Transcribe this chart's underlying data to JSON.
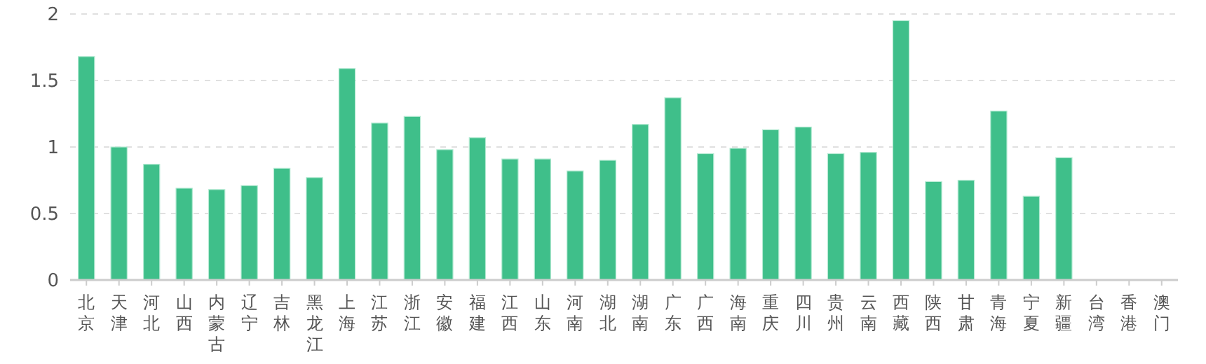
{
  "chart_data": {
    "type": "bar",
    "categories": [
      "北京",
      "天津",
      "河北",
      "山西",
      "内蒙古",
      "辽宁",
      "吉林",
      "黑龙江",
      "上海",
      "江苏",
      "浙江",
      "安徽",
      "福建",
      "江西",
      "山东",
      "河南",
      "湖北",
      "湖南",
      "广东",
      "广西",
      "海南",
      "重庆",
      "四川",
      "贵州",
      "云南",
      "西藏",
      "陕西",
      "甘肃",
      "青海",
      "宁夏",
      "新疆",
      "台湾",
      "香港",
      "澳门"
    ],
    "values": [
      1.68,
      1.0,
      0.87,
      0.69,
      0.68,
      0.71,
      0.84,
      0.77,
      1.59,
      1.18,
      1.23,
      0.98,
      1.07,
      0.91,
      0.91,
      0.82,
      0.9,
      1.17,
      1.37,
      0.95,
      0.99,
      1.13,
      1.15,
      0.95,
      0.96,
      1.95,
      0.74,
      0.75,
      1.27,
      0.63,
      0.92,
      null,
      null,
      null
    ],
    "color": "#3fbf8a",
    "ylim": [
      0,
      2
    ],
    "yticks": [
      0,
      0.5,
      1,
      1.5,
      2
    ],
    "grid": "y"
  }
}
